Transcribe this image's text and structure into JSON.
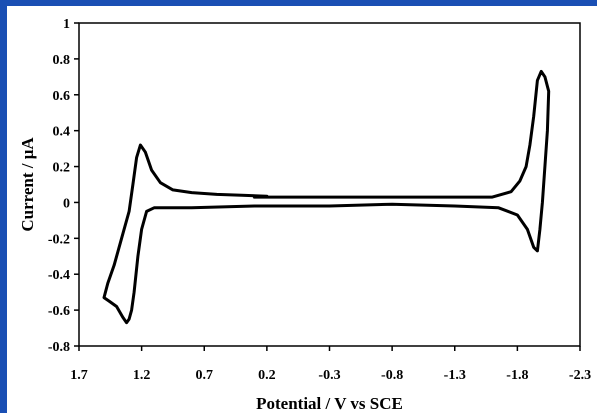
{
  "frame": {
    "accent_color": "#1a4fb4"
  },
  "chart_data": {
    "type": "line",
    "title": "",
    "xlabel": "Potential / V vs SCE",
    "ylabel": "Current / μA",
    "xlim": [
      1.7,
      -2.3
    ],
    "ylim": [
      -0.8,
      1.0
    ],
    "x_reversed": true,
    "grid": false,
    "legend": "none",
    "x_ticks": [
      1.7,
      1.2,
      0.7,
      0.2,
      -0.3,
      -0.8,
      -1.3,
      -1.8,
      -2.3
    ],
    "x_tick_labels": [
      "1.7",
      "1.2",
      "0.7",
      "0.2",
      "-0.3",
      "-0.8",
      "-1.3",
      "-1.8",
      "-2.3"
    ],
    "y_ticks": [
      1,
      0.8,
      0.6,
      0.4,
      0.2,
      0,
      -0.2,
      -0.4,
      -0.6,
      -0.8
    ],
    "y_tick_labels": [
      "1",
      "0.8",
      "0.6",
      "0.4",
      "0.2",
      "0",
      "-0.2",
      "-0.4",
      "-0.6",
      "-0.8"
    ],
    "series": [
      {
        "color": "#000000",
        "points": [
          [
            0.3,
            0.03
          ],
          [
            0.0,
            0.03
          ],
          [
            -0.5,
            0.03
          ],
          [
            -1.0,
            0.03
          ],
          [
            -1.4,
            0.03
          ],
          [
            -1.6,
            0.03
          ],
          [
            -1.75,
            0.06
          ],
          [
            -1.82,
            0.12
          ],
          [
            -1.87,
            0.2
          ],
          [
            -1.9,
            0.32
          ],
          [
            -1.93,
            0.48
          ],
          [
            -1.96,
            0.68
          ],
          [
            -1.99,
            0.73
          ],
          [
            -2.02,
            0.7
          ],
          [
            -2.05,
            0.62
          ],
          [
            -2.04,
            0.4
          ],
          [
            -2.02,
            0.2
          ],
          [
            -2.0,
            0.0
          ],
          [
            -1.98,
            -0.15
          ],
          [
            -1.96,
            -0.27
          ],
          [
            -1.93,
            -0.25
          ],
          [
            -1.88,
            -0.15
          ],
          [
            -1.8,
            -0.07
          ],
          [
            -1.65,
            -0.03
          ],
          [
            -1.3,
            -0.02
          ],
          [
            -0.8,
            -0.01
          ],
          [
            -0.3,
            -0.02
          ],
          [
            0.3,
            -0.02
          ],
          [
            0.8,
            -0.03
          ],
          [
            1.1,
            -0.03
          ],
          [
            1.16,
            -0.05
          ],
          [
            1.2,
            -0.15
          ],
          [
            1.23,
            -0.3
          ],
          [
            1.26,
            -0.5
          ],
          [
            1.28,
            -0.6
          ],
          [
            1.3,
            -0.65
          ],
          [
            1.32,
            -0.67
          ],
          [
            1.35,
            -0.64
          ],
          [
            1.4,
            -0.58
          ],
          [
            1.46,
            -0.55
          ],
          [
            1.5,
            -0.53
          ],
          [
            1.47,
            -0.45
          ],
          [
            1.42,
            -0.35
          ],
          [
            1.36,
            -0.2
          ],
          [
            1.3,
            -0.05
          ],
          [
            1.27,
            0.1
          ],
          [
            1.24,
            0.25
          ],
          [
            1.21,
            0.32
          ],
          [
            1.17,
            0.28
          ],
          [
            1.12,
            0.18
          ],
          [
            1.05,
            0.11
          ],
          [
            0.95,
            0.07
          ],
          [
            0.8,
            0.055
          ],
          [
            0.6,
            0.045
          ],
          [
            0.4,
            0.04
          ],
          [
            0.2,
            0.035
          ]
        ]
      }
    ]
  }
}
